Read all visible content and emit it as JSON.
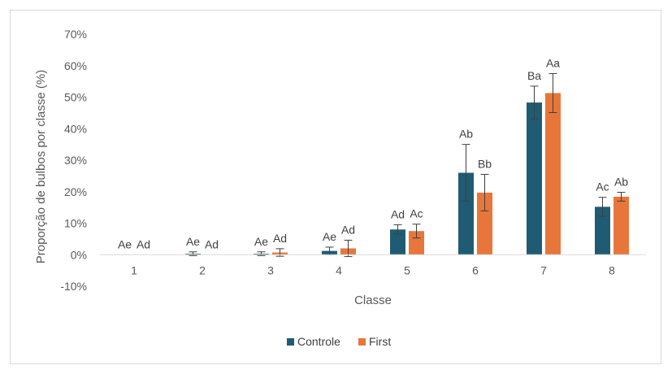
{
  "chart_data": {
    "type": "bar",
    "title": "",
    "xlabel": "Classe",
    "ylabel": "Proporção de bulbos por classe (%)",
    "ylim": [
      -10,
      70
    ],
    "yticks": [
      -10,
      0,
      10,
      20,
      30,
      40,
      50,
      60,
      70
    ],
    "ytick_labels": [
      "-10%",
      "0%",
      "10%",
      "20%",
      "30%",
      "40%",
      "50%",
      "60%",
      "70%"
    ],
    "categories": [
      "1",
      "2",
      "3",
      "4",
      "5",
      "6",
      "7",
      "8"
    ],
    "grid": false,
    "legend_position": "bottom",
    "series": [
      {
        "name": "Controle",
        "color": "#1f5c73",
        "values": [
          0,
          0.3,
          0.3,
          1.2,
          8.0,
          26.0,
          48.3,
          15.2
        ],
        "error": [
          0,
          0.6,
          0.6,
          1.2,
          1.5,
          9.0,
          5.2,
          3.0
        ],
        "labels": [
          "Ae",
          "Ae",
          "Ae",
          "Ae",
          "Ad",
          "Ab",
          "Ba",
          "Ac"
        ]
      },
      {
        "name": "First",
        "color": "#e8763a",
        "values": [
          0,
          0,
          0.7,
          2.0,
          7.5,
          19.7,
          51.3,
          18.4
        ],
        "error": [
          0,
          0,
          1.2,
          2.6,
          2.2,
          5.8,
          6.2,
          1.4
        ],
        "labels": [
          "Ad",
          "Ad",
          "Ad",
          "Ad",
          "Ac",
          "Bb",
          "Aa",
          "Ab"
        ]
      }
    ]
  }
}
